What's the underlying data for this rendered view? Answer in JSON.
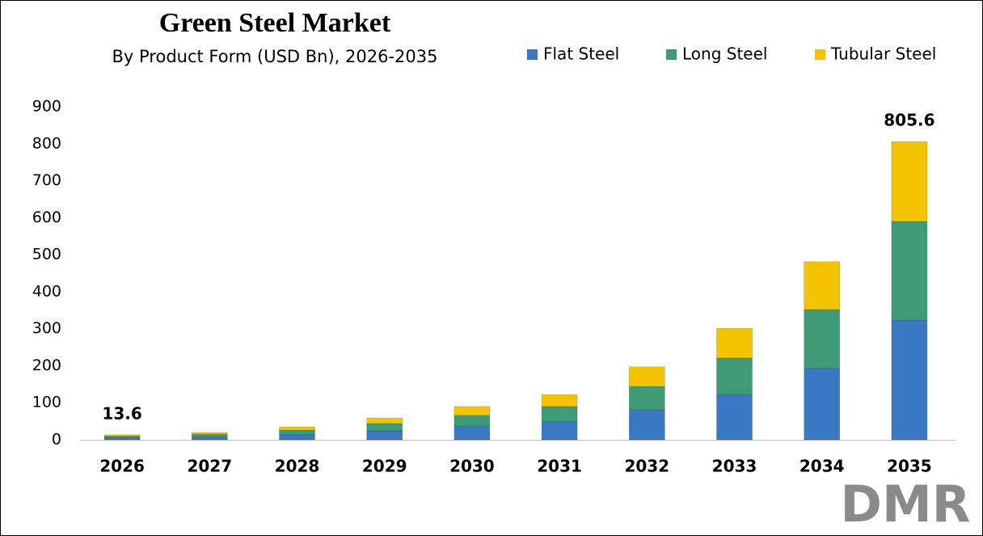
{
  "chart_data": {
    "type": "stacked_bar",
    "title": "Green Steel Market",
    "subtitle": "By Product Form (USD Bn), 2026-2035",
    "categories": [
      "2026",
      "2027",
      "2028",
      "2029",
      "2030",
      "2031",
      "2032",
      "2033",
      "2034",
      "2035"
    ],
    "series": [
      {
        "name": "Flat Steel",
        "color": "#3b78c3",
        "values": [
          5.5,
          8,
          14,
          24,
          37,
          50,
          81,
          122,
          194,
          323
        ]
      },
      {
        "name": "Long Steel",
        "color": "#3f9b77",
        "values": [
          4.6,
          7,
          12,
          20,
          29,
          40,
          63,
          99,
          158,
          267
        ]
      },
      {
        "name": "Tubular Steel",
        "color": "#f5c400",
        "values": [
          3.5,
          5,
          9,
          15,
          24,
          32,
          53,
          80,
          129,
          215.6
        ]
      }
    ],
    "annotations": [
      {
        "x": "2026",
        "value": 13.6
      },
      {
        "x": "2035",
        "value": 805.6
      }
    ],
    "ylim": [
      0,
      900
    ],
    "yticks": [
      0,
      100,
      200,
      300,
      400,
      500,
      600,
      700,
      800,
      900
    ],
    "grid": false,
    "legend": "top-right",
    "logo": "DMR"
  }
}
